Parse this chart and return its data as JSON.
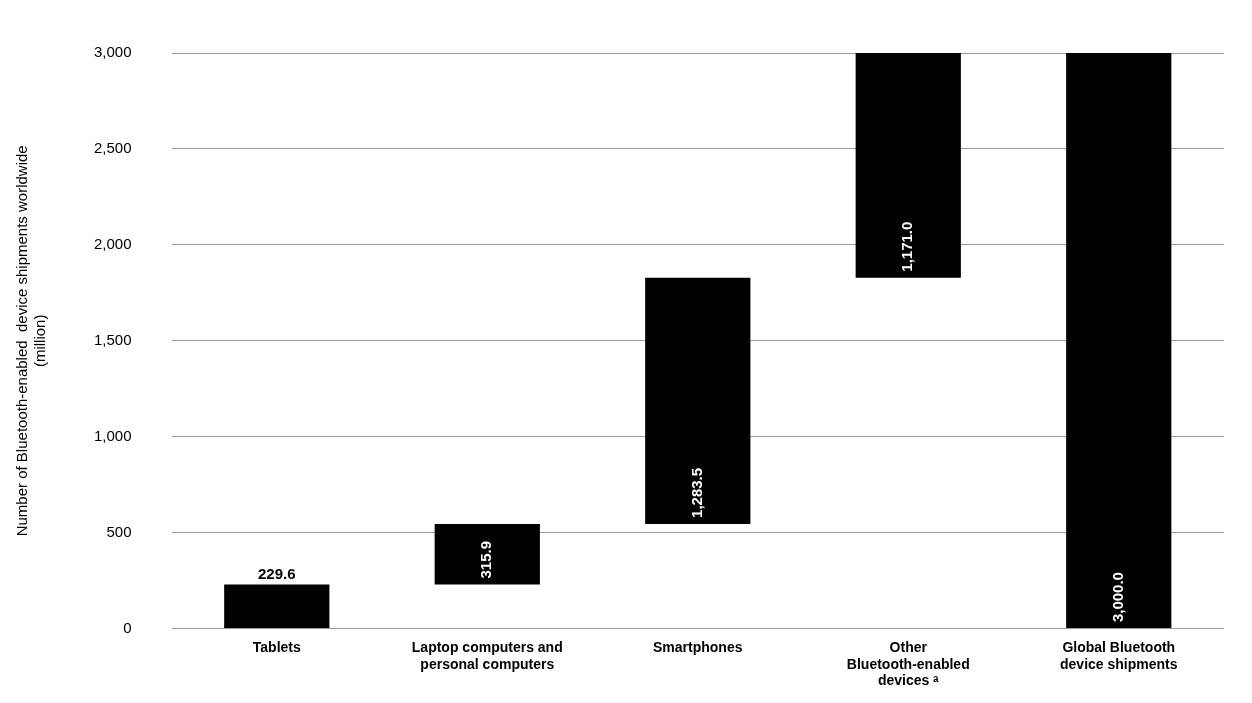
{
  "chart_data": {
    "type": "bar",
    "ylabel": "Number of Bluetooth-enabled  device shipments worldwide (million)",
    "categories": [
      "Tablets",
      "Laptop computers and personal computers",
      "Smartphones",
      "Other Bluetooth-enabled devices ᵃ",
      "Global Bluetooth device shipments"
    ],
    "values": [
      229.6,
      315.9,
      1283.5,
      1171.0,
      3000.0
    ],
    "base": [
      0,
      229.6,
      545.5,
      1829.0,
      0
    ],
    "value_labels": [
      "229.6",
      "315.9",
      "1,283.5",
      "1,171.0",
      "3,000.0"
    ],
    "color": "#000000",
    "ylim": [
      0,
      3000
    ],
    "yticks": [
      0,
      500,
      {
        "value": 1000,
        "label": "1,000"
      },
      {
        "value": 1500,
        "label": "1,500"
      },
      {
        "value": 2000,
        "label": "2,000"
      },
      {
        "value": 2500,
        "label": "2,500"
      },
      {
        "value": 3000,
        "label": "3,000"
      }
    ],
    "grid": "y"
  }
}
